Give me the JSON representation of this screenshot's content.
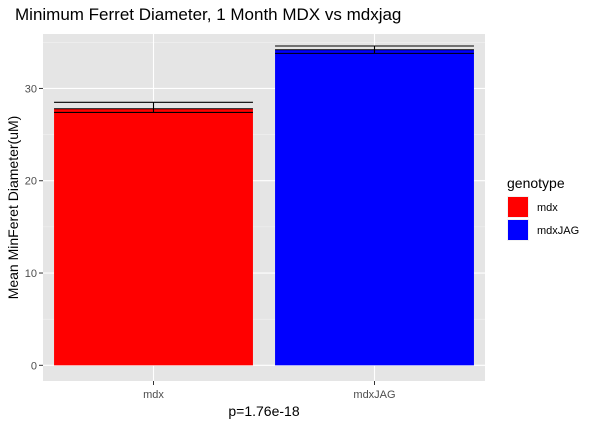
{
  "chart_data": {
    "type": "bar",
    "title": "Minimum Ferret Diameter, 1 Month MDX vs mdxjag",
    "xlabel": "p=1.76e-18",
    "ylabel": "Mean MinFeret Diameter(uM)",
    "categories": [
      "mdx",
      "mdxJAG"
    ],
    "values": [
      27.8,
      34.2
    ],
    "error_bars": [
      {
        "low": 27.4,
        "high": 28.5
      },
      {
        "low": 33.8,
        "high": 34.6
      }
    ],
    "colors": [
      "#ff0000",
      "#0000ff"
    ],
    "ylim": [
      -1.7,
      35.9
    ],
    "yticks": [
      0,
      10,
      20,
      30
    ],
    "grid": true,
    "legend": {
      "title": "genotype",
      "placement": "right",
      "entries": [
        {
          "label": "mdx",
          "color": "#ff0000"
        },
        {
          "label": "mdxJAG",
          "color": "#0000ff"
        }
      ]
    },
    "panel_background": "#e5e5e5"
  }
}
